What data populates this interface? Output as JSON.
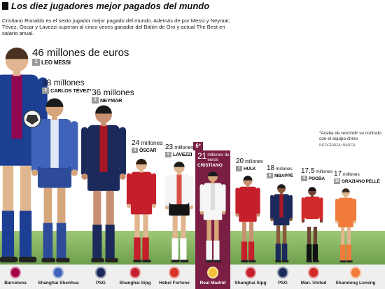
{
  "header": {
    "title": "Los diez jugadores mejor pagados del mundo",
    "subtitle": "Cristiano Ronaldo es el sexto jugador mejor pagado del mundo. Además de por Messi y Neymar, Tévez, Óscar y Lavezzi superan al cinco veces ganador del Balón de Oro y actual The Best en salario anual."
  },
  "footnote": {
    "text": "*Acaba de rescindir su contrato con el equipo chino",
    "credit": "INFOGRAFÍA: MARCA"
  },
  "players": [
    {
      "rank": "1",
      "amount_num": "46",
      "amount_unit": "millones de euros",
      "name": "LEO MESSI",
      "club": "Barcelona",
      "salary_millions": 46
    },
    {
      "rank": "2",
      "amount_num": "38",
      "amount_unit": "millones",
      "name": "CARLOS TÉVEZ*",
      "club": "Shanghai Shenhua",
      "salary_millions": 38
    },
    {
      "rank": "3",
      "amount_num": "36",
      "amount_unit": "millones",
      "name": "NEYMAR",
      "club": "PSG",
      "salary_millions": 36
    },
    {
      "rank": "4",
      "amount_num": "24",
      "amount_unit": "millones",
      "name": "ÓSCAR",
      "club": "Shanghai Sipg",
      "salary_millions": 24
    },
    {
      "rank": "5",
      "amount_num": "23",
      "amount_unit": "millones",
      "name": "LAVEZZI",
      "club": "Hebei Fortune",
      "salary_millions": 23
    },
    {
      "rank": "6º",
      "amount_num": "21",
      "amount_unit": "millones de euros",
      "name": "CRISTIANO",
      "club": "Real Madrid",
      "salary_millions": 21
    },
    {
      "rank": "7",
      "amount_num": "20",
      "amount_unit": "millones",
      "name": "HULK",
      "club": "Shanghai Sipg",
      "salary_millions": 20
    },
    {
      "rank": "8",
      "amount_num": "18",
      "amount_unit": "millones",
      "name": "MBAPPÉ",
      "club": "PSG",
      "salary_millions": 18
    },
    {
      "rank": "9",
      "amount_num": "17,5",
      "amount_unit": "millones",
      "name": "POGBA",
      "club": "Man. United",
      "salary_millions": 17.5
    },
    {
      "rank": "10",
      "amount_num": "17",
      "amount_unit": "millones",
      "name": "GRAZIANO PELLÈ",
      "club": "Shandong Luneng",
      "salary_millions": 17
    }
  ],
  "colors": {
    "highlight": "#7a1f43",
    "rank_badge": "#9b9b9b",
    "grass": "#8bb866"
  },
  "figures": [
    {
      "name": "messi",
      "shirt": "#1c3f94",
      "shirt2": "#a50044",
      "shorts": "#1c3f94",
      "socks": "#1c3f94",
      "skin": "#e0b690",
      "hair": "#4a3020"
    },
    {
      "name": "tevez",
      "shirt": "#3f63b8",
      "shirt2": "#ffffff",
      "shorts": "#2d4b99",
      "socks": "#2d4b99",
      "skin": "#d7a77c",
      "hair": "#1b1b1b"
    },
    {
      "name": "neymar",
      "shirt": "#1b2a5a",
      "shirt2": "#c0141d",
      "shorts": "#1b2a5a",
      "socks": "#1b2a5a",
      "skin": "#c89070",
      "hair": "#1b1b1b"
    },
    {
      "name": "oscar",
      "shirt": "#c41f2b",
      "shirt2": "#c41f2b",
      "shorts": "#c41f2b",
      "socks": "#c41f2b",
      "skin": "#e0b690",
      "hair": "#2a1a10"
    },
    {
      "name": "lavezzi",
      "shirt": "#f4f4f4",
      "shirt2": "#d63327",
      "shorts": "#151515",
      "socks": "#ffffff",
      "skin": "#e0b690",
      "hair": "#1b1b1b"
    },
    {
      "name": "cristiano",
      "shirt": "#f6f6f6",
      "shirt2": "#d8d8d8",
      "shorts": "#f6f6f6",
      "socks": "#f6f6f6",
      "skin": "#d9a67a",
      "hair": "#1b1b1b"
    },
    {
      "name": "hulk",
      "shirt": "#c41f2b",
      "shirt2": "#c41f2b",
      "shorts": "#c41f2b",
      "socks": "#c41f2b",
      "skin": "#c89070",
      "hair": "#1b1b1b"
    },
    {
      "name": "mbappe",
      "shirt": "#1b2a5a",
      "shirt2": "#c0141d",
      "shorts": "#1b2a5a",
      "socks": "#1b2a5a",
      "skin": "#8a5a3c",
      "hair": "#1b1b1b"
    },
    {
      "name": "pogba",
      "shirt": "#d22a2a",
      "shirt2": "#d22a2a",
      "shorts": "#ffffff",
      "socks": "#111111",
      "skin": "#6b4330",
      "hair": "#111111"
    },
    {
      "name": "pelle",
      "shirt": "#f07b3a",
      "shirt2": "#f07b3a",
      "shorts": "#f07b3a",
      "socks": "#f07b3a",
      "skin": "#e0b690",
      "hair": "#3a2a1a"
    }
  ],
  "club_colors": [
    "#a50044",
    "#3f63b8",
    "#1b2a5a",
    "#c41f2b",
    "#d63327",
    "#f3c13a",
    "#c41f2b",
    "#1b2a5a",
    "#d22a2a",
    "#f07b3a"
  ]
}
